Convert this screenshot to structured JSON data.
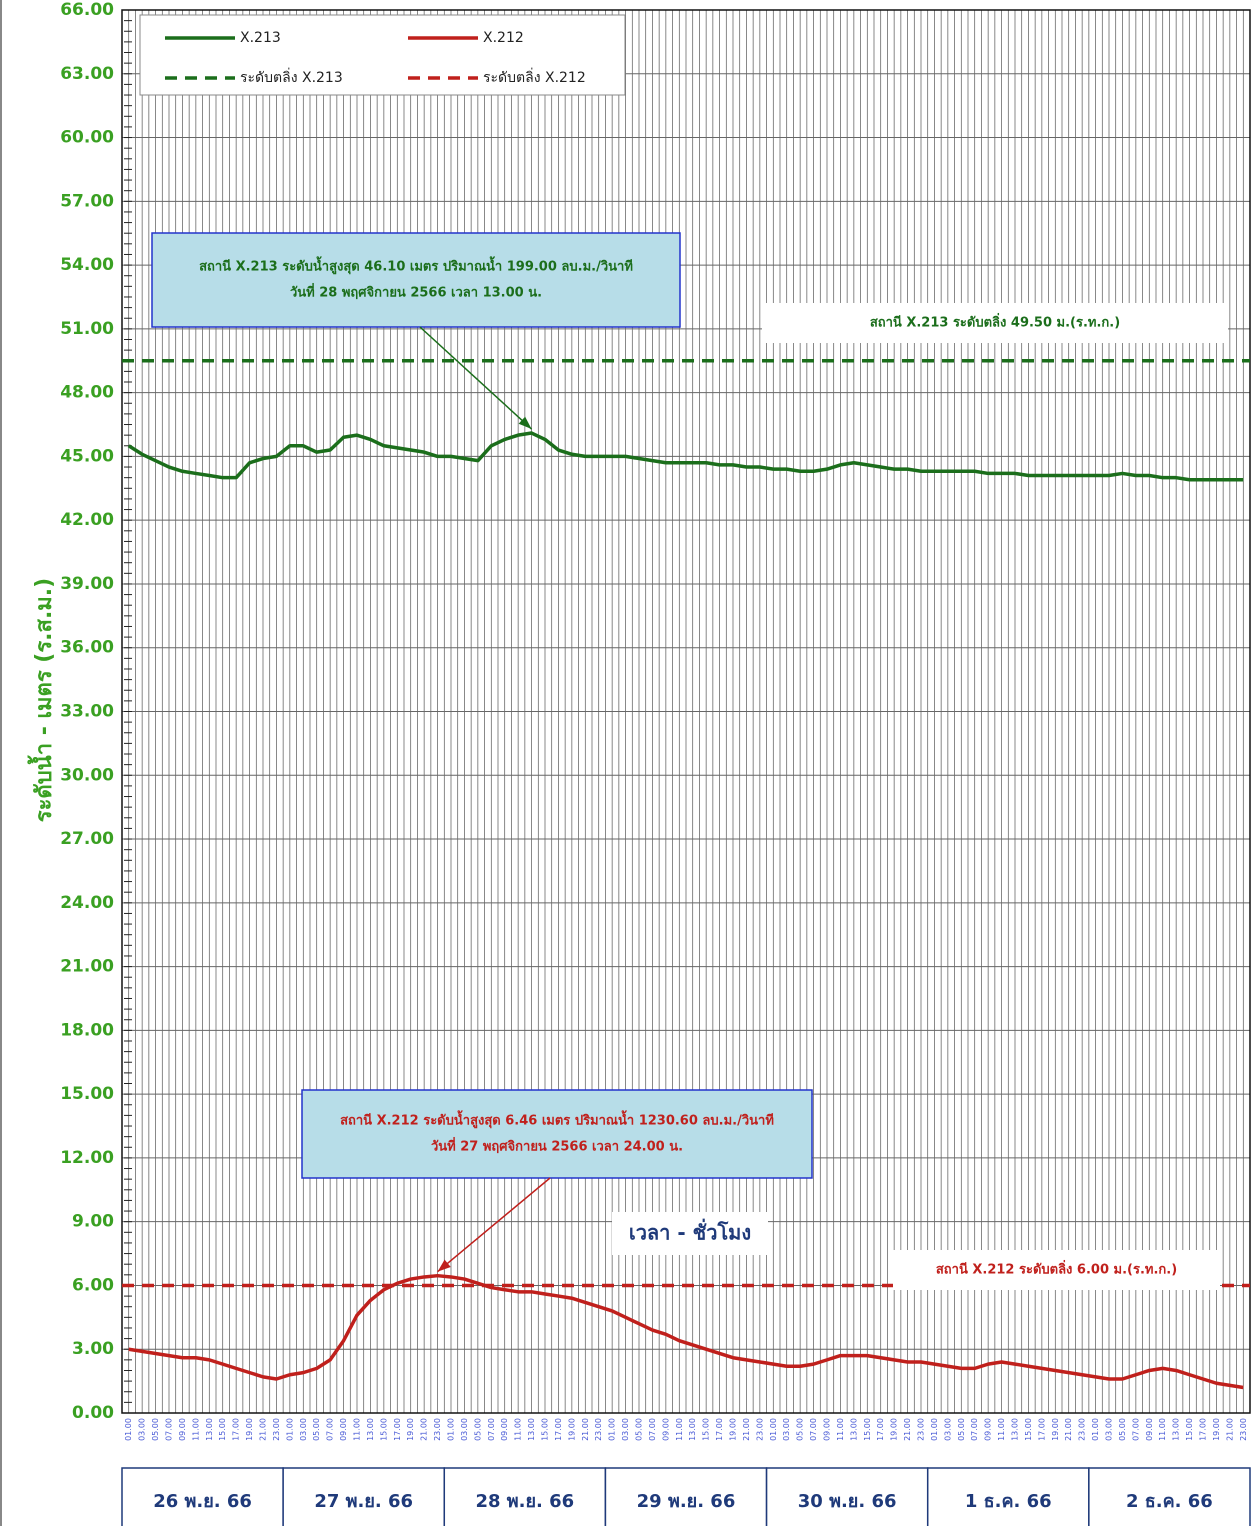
{
  "chart_data": {
    "type": "line",
    "ylabel": "ระดับน้ำ  -  เมตร (ร.ส.ม.)",
    "xlabel": "เวลา  -  ชั่วโมง",
    "categories": [
      "01.00",
      "03.00",
      "05.00",
      "07.00",
      "09.00",
      "11.00",
      "13.00",
      "15.00",
      "17.00",
      "19.00",
      "21.00",
      "23.00",
      "01.00",
      "03.00",
      "05.00",
      "07.00",
      "09.00",
      "11.00",
      "13.00",
      "15.00",
      "17.00",
      "19.00",
      "21.00",
      "23.00",
      "01.00",
      "03.00",
      "05.00",
      "07.00",
      "09.00",
      "11.00",
      "13.00",
      "15.00",
      "17.00",
      "19.00",
      "21.00",
      "23.00",
      "01.00",
      "03.00",
      "05.00",
      "07.00",
      "09.00",
      "11.00",
      "13.00",
      "15.00",
      "17.00",
      "19.00",
      "21.00",
      "23.00",
      "01.00",
      "03.00",
      "05.00",
      "07.00",
      "09.00",
      "11.00",
      "13.00",
      "15.00",
      "17.00",
      "19.00",
      "21.00",
      "23.00",
      "01.00",
      "03.00",
      "05.00",
      "07.00",
      "09.00",
      "11.00",
      "13.00",
      "15.00",
      "17.00",
      "19.00",
      "21.00",
      "23.00",
      "01.00",
      "03.00",
      "05.00",
      "07.00",
      "09.00",
      "11.00",
      "13.00",
      "15.00",
      "17.00",
      "19.00",
      "21.00",
      "23.00"
    ],
    "day_groups": [
      "26 พ.ย. 66",
      "27 พ.ย. 66",
      "28 พ.ย. 66",
      "29 พ.ย. 66",
      "30 พ.ย. 66",
      "1 ธ.ค. 66",
      "2 ธ.ค. 66"
    ],
    "series": [
      {
        "name": "X.213",
        "color": "#1b6e1b",
        "values": [
          45.5,
          45.1,
          44.8,
          44.5,
          44.3,
          44.2,
          44.1,
          44.0,
          44.0,
          44.7,
          44.9,
          45.0,
          45.5,
          45.5,
          45.2,
          45.3,
          45.9,
          46.0,
          45.8,
          45.5,
          45.4,
          45.3,
          45.2,
          45.0,
          45.0,
          44.9,
          44.8,
          45.5,
          45.8,
          46.0,
          46.1,
          45.8,
          45.3,
          45.1,
          45.0,
          45.0,
          45.0,
          45.0,
          44.9,
          44.8,
          44.7,
          44.7,
          44.7,
          44.7,
          44.6,
          44.6,
          44.5,
          44.5,
          44.4,
          44.4,
          44.3,
          44.3,
          44.4,
          44.6,
          44.7,
          44.6,
          44.5,
          44.4,
          44.4,
          44.3,
          44.3,
          44.3,
          44.3,
          44.3,
          44.2,
          44.2,
          44.2,
          44.1,
          44.1,
          44.1,
          44.1,
          44.1,
          44.1,
          44.1,
          44.2,
          44.1,
          44.1,
          44.0,
          44.0,
          43.9,
          43.9,
          43.9,
          43.9,
          43.9
        ]
      },
      {
        "name": "X.212",
        "color": "#c0201c",
        "values": [
          3.0,
          2.9,
          2.8,
          2.7,
          2.6,
          2.6,
          2.5,
          2.3,
          2.1,
          1.9,
          1.7,
          1.6,
          1.8,
          1.9,
          2.1,
          2.5,
          3.4,
          4.6,
          5.3,
          5.8,
          6.1,
          6.3,
          6.4,
          6.46,
          6.4,
          6.3,
          6.1,
          5.9,
          5.8,
          5.7,
          5.7,
          5.6,
          5.5,
          5.4,
          5.2,
          5.0,
          4.8,
          4.5,
          4.2,
          3.9,
          3.7,
          3.4,
          3.2,
          3.0,
          2.8,
          2.6,
          2.5,
          2.4,
          2.3,
          2.2,
          2.2,
          2.3,
          2.5,
          2.7,
          2.7,
          2.7,
          2.6,
          2.5,
          2.4,
          2.4,
          2.3,
          2.2,
          2.1,
          2.1,
          2.3,
          2.4,
          2.3,
          2.2,
          2.1,
          2.0,
          1.9,
          1.8,
          1.7,
          1.6,
          1.6,
          1.8,
          2.0,
          2.1,
          2.0,
          1.8,
          1.6,
          1.4,
          1.3,
          1.2
        ]
      }
    ],
    "reference_lines": [
      {
        "name": "ระดับตลิ่ง X.213",
        "value": 49.5,
        "color": "#1b6e1b",
        "label": "สถานี X.213 ระดับตลิ่ง 49.50 ม.(ร.ท.ก.)"
      },
      {
        "name": "ระดับตลิ่ง X.212",
        "value": 6.0,
        "color": "#c0201c",
        "label": "สถานี X.212 ระดับตลิ่ง 6.00 ม.(ร.ท.ก.)"
      }
    ],
    "annotations": [
      {
        "lines": [
          "สถานี X.213 ระดับน้ำสูงสุด 46.10 เมตร ปริมาณน้ำ 199.00 ลบ.ม./วินาที",
          "วันที่ 28 พฤศจิกายน 2566 เวลา 13.00 น."
        ],
        "color": "#1b6e1b"
      },
      {
        "lines": [
          "สถานี X.212 ระดับน้ำสูงสุด 6.46 เมตร ปริมาณน้ำ 1230.60 ลบ.ม./วินาที",
          "วันที่ 27 พฤศจิกายน 2566 เวลา 24.00 น."
        ],
        "color": "#c0201c"
      }
    ],
    "ylim": [
      0,
      66
    ],
    "yticks": [
      {
        "value": 0,
        "label": "0.00"
      },
      {
        "value": 3,
        "label": "3.00"
      },
      {
        "value": 6,
        "label": "6.00"
      },
      {
        "value": 9,
        "label": "9.00"
      },
      {
        "value": 12,
        "label": "12.00"
      },
      {
        "value": 15,
        "label": "15.00"
      },
      {
        "value": 18,
        "label": "18.00"
      },
      {
        "value": 21,
        "label": "21.00"
      },
      {
        "value": 24,
        "label": "24.00"
      },
      {
        "value": 27,
        "label": "27.00"
      },
      {
        "value": 30,
        "label": "30.00"
      },
      {
        "value": 33,
        "label": "33.00"
      },
      {
        "value": 36,
        "label": "36.00"
      },
      {
        "value": 39,
        "label": "39.00"
      },
      {
        "value": 42,
        "label": "42.00"
      },
      {
        "value": 45,
        "label": "45.00"
      },
      {
        "value": 48,
        "label": "48.00"
      },
      {
        "value": 51,
        "label": "51.00"
      },
      {
        "value": 54,
        "label": "54.00"
      },
      {
        "value": 57,
        "label": "57.00"
      },
      {
        "value": 60,
        "label": "60.00"
      },
      {
        "value": 63,
        "label": "63.00"
      },
      {
        "value": 66,
        "label": "66.00"
      }
    ],
    "grid": true
  }
}
